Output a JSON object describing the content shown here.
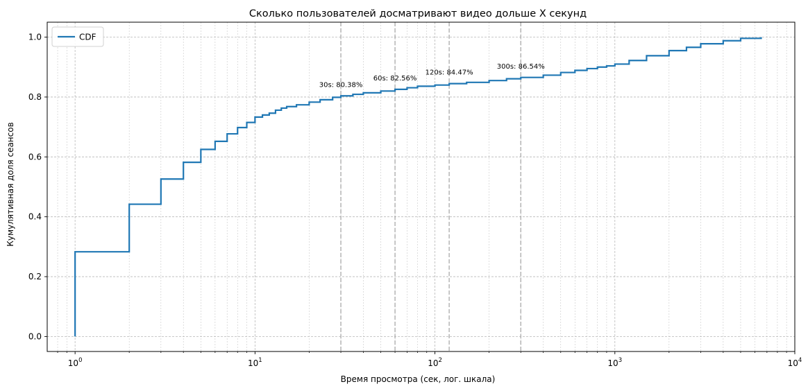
{
  "chart_data": {
    "type": "line",
    "step": true,
    "title": "Сколько пользователей досматривают видео дольше X секунд",
    "xlabel": "Время просмотра (сек, лог. шкала)",
    "ylabel": "Кумулятивная доля сеансов",
    "xscale": "log",
    "xlim": [
      0.7,
      10000
    ],
    "ylim": [
      -0.05,
      1.05
    ],
    "grid": true,
    "legend": {
      "position": "top-left"
    },
    "x_ticks": [
      {
        "value": 1,
        "base": "10",
        "exp": "0"
      },
      {
        "value": 10,
        "base": "10",
        "exp": "1"
      },
      {
        "value": 100,
        "base": "10",
        "exp": "2"
      },
      {
        "value": 1000,
        "base": "10",
        "exp": "3"
      },
      {
        "value": 10000,
        "base": "10",
        "exp": "4"
      }
    ],
    "y_ticks": [
      {
        "value": 0.0,
        "label": "0.0"
      },
      {
        "value": 0.2,
        "label": "0.2"
      },
      {
        "value": 0.4,
        "label": "0.4"
      },
      {
        "value": 0.6,
        "label": "0.6"
      },
      {
        "value": 0.8,
        "label": "0.8"
      },
      {
        "value": 1.0,
        "label": "1.0"
      }
    ],
    "series": [
      {
        "name": "CDF",
        "color": "#1f77b4",
        "x": [
          1,
          1,
          2,
          3,
          4,
          5,
          6,
          7,
          8,
          9,
          10,
          11,
          12,
          13,
          14,
          15,
          17,
          20,
          23,
          27,
          30,
          35,
          40,
          50,
          60,
          70,
          80,
          100,
          120,
          150,
          200,
          250,
          300,
          400,
          500,
          600,
          700,
          800,
          900,
          1000,
          1200,
          1500,
          2000,
          2500,
          3000,
          4000,
          5000,
          6500
        ],
        "y": [
          0.0,
          0.283,
          0.442,
          0.526,
          0.582,
          0.625,
          0.652,
          0.677,
          0.698,
          0.715,
          0.733,
          0.74,
          0.746,
          0.756,
          0.763,
          0.768,
          0.774,
          0.783,
          0.791,
          0.799,
          0.804,
          0.809,
          0.814,
          0.82,
          0.8256,
          0.831,
          0.836,
          0.84,
          0.8447,
          0.849,
          0.855,
          0.861,
          0.8654,
          0.873,
          0.882,
          0.889,
          0.895,
          0.9,
          0.904,
          0.91,
          0.922,
          0.938,
          0.955,
          0.966,
          0.978,
          0.988,
          0.996,
          1.0
        ]
      }
    ],
    "reference_lines": [
      {
        "x": 30,
        "label": "30s: 80.38%",
        "y": 0.8038
      },
      {
        "x": 60,
        "label": "60s: 82.56%",
        "y": 0.8256
      },
      {
        "x": 120,
        "label": "120s: 84.47%",
        "y": 0.8447
      },
      {
        "x": 300,
        "label": "300s: 86.54%",
        "y": 0.8654
      }
    ]
  }
}
